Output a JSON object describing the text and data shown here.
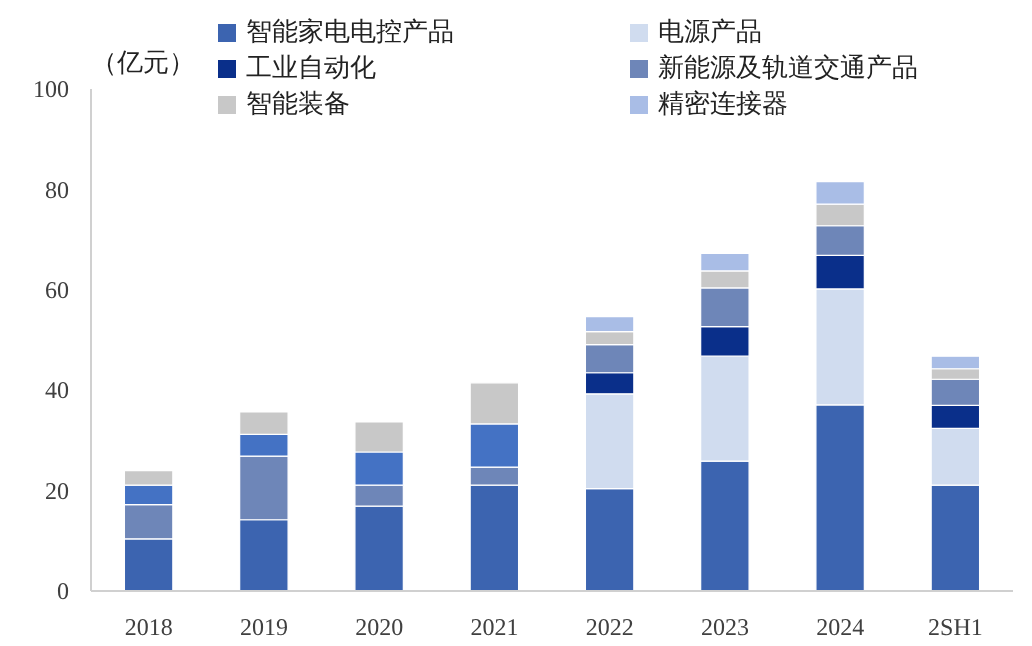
{
  "chart_data": {
    "type": "bar",
    "stacked": true,
    "ylabel": "（亿元）",
    "categories": [
      "2018",
      "2019",
      "2020",
      "2021",
      "2022",
      "2023",
      "2024",
      "2SH1"
    ],
    "series": [
      {
        "name": "智能家电电控产品",
        "color": "#3c64b0",
        "values": [
          10.4,
          14.2,
          16.9,
          21.1,
          20.4,
          25.9,
          37.1,
          21.1
        ]
      },
      {
        "name": "电源产品",
        "color": "#d0dcef",
        "values": [
          null,
          null,
          null,
          null,
          18.9,
          20.9,
          23.1,
          11.3
        ]
      },
      {
        "name": "工业自动化",
        "color": "#0a2f8a",
        "values": [
          null,
          null,
          null,
          null,
          4.2,
          5.9,
          6.7,
          4.6
        ]
      },
      {
        "name": "新能源及轨道交通产品",
        "color": "#6e86b8",
        "values": [
          6.8,
          12.7,
          4.2,
          3.6,
          5.6,
          7.7,
          5.9,
          5.2
        ]
      },
      {
        "color": "#4472c4",
        "values": [
          3.9,
          4.3,
          6.6,
          8.6,
          null,
          null,
          null,
          null
        ]
      },
      {
        "name": "智能装备",
        "color": "#c8c8c8",
        "values": [
          2.9,
          4.5,
          6.0,
          8.2,
          2.6,
          3.4,
          4.3,
          2.1
        ]
      },
      {
        "name": "精密连接器",
        "color": "#a9bde6",
        "values": [
          null,
          null,
          null,
          null,
          3.0,
          3.5,
          4.5,
          2.5
        ]
      }
    ],
    "ylim": [
      0,
      100
    ],
    "yticks": [
      0,
      20,
      40,
      60,
      80,
      100
    ],
    "grid": false,
    "legend": "top"
  }
}
